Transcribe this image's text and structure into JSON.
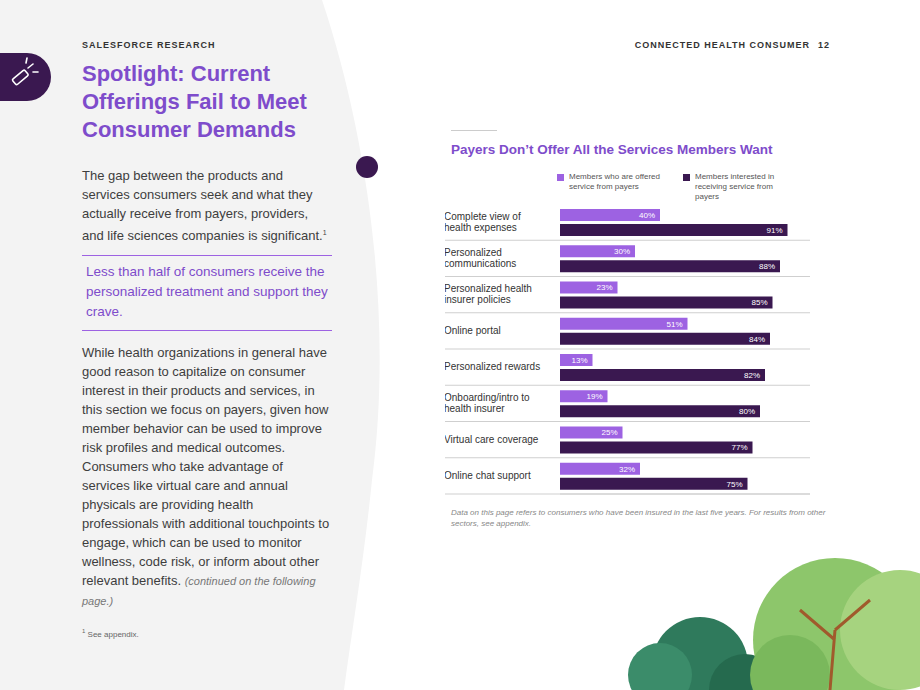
{
  "header": {
    "left": "SALESFORCE RESEARCH",
    "right": "CONNECTED HEALTH CONSUMER",
    "page": 12
  },
  "sidebar": {
    "title": "Spotlight: Current Offerings Fail to Meet Consumer Demands",
    "paragraph1": "The gap between the products and services consumers seek and what they actually receive from payers, providers, and life sciences companies is significant.",
    "paragraph1_ref": "1",
    "pull_quote": "Less than half of consumers receive the personalized treatment and support they crave.",
    "paragraph2": "While health organizations in general have good reason to capitalize on consumer interest in their products and services, in this section we focus on payers, given how member behavior can be used to improve risk profiles and medical outcomes. Consumers who take advantage of services like virtual care and annual physicals are providing health professionals with additional touchpoints to engage, which can be used to monitor wellness, code risk, or inform about other relevant benefits.",
    "paragraph2_continued": "(continued on the following page.)",
    "footnote": {
      "mark": "1",
      "text": "See appendix."
    }
  },
  "chart_data": {
    "type": "bar",
    "orientation": "horizontal",
    "title": "Payers Don’t Offer All the Services Members Want",
    "categories": [
      "Complete view of health expenses",
      "Personalized communications",
      "Personalized health insurer policies",
      "Online portal",
      "Personalized rewards",
      "Onboarding/intro to health insurer",
      "Virtual care coverage",
      "Online chat support"
    ],
    "series": [
      {
        "name": "Members who are offered service from payers",
        "color": "#9d62e2",
        "values": [
          40,
          30,
          23,
          51,
          13,
          19,
          25,
          32
        ],
        "value_labels": [
          "40%",
          "30%",
          "23%",
          "51%",
          "13%",
          "19%",
          "25%",
          "32%"
        ]
      },
      {
        "name": "Members interested in receiving service from payers",
        "color": "#3a1850",
        "values": [
          91,
          88,
          85,
          84,
          82,
          80,
          77,
          75
        ],
        "value_labels": [
          "91%",
          "88%",
          "85%",
          "84%",
          "82%",
          "80%",
          "77%",
          "75%"
        ]
      }
    ],
    "xlim": [
      0,
      100
    ],
    "tick_labels": "y",
    "data_labels": true,
    "legend": "top"
  },
  "chart_note": "Data on this page refers to consumers who have been insured in the last five years. For results from other sectors, see appendix."
}
